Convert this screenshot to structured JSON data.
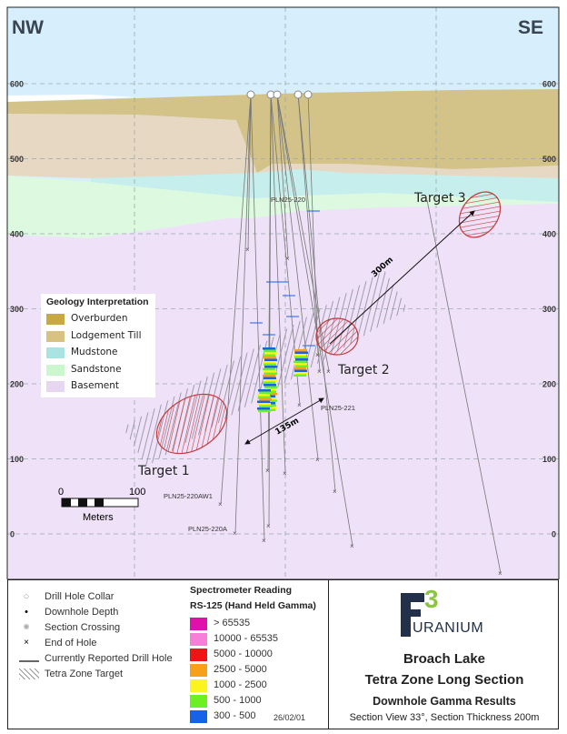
{
  "map": {
    "left_direction": "NW",
    "right_direction": "SE",
    "elevation_ticks": [
      "600",
      "500",
      "400",
      "300",
      "200",
      "100",
      "0"
    ],
    "hole_labels": [
      "PLN25-220",
      "PLN25-221",
      "PLN25-220AW1",
      "PLN25-220A"
    ],
    "targets": [
      "Target 1",
      "Target 2",
      "Target 3"
    ],
    "distances": [
      "135m",
      "300m"
    ],
    "scale_bar": {
      "start": "0",
      "end": "100",
      "unit": "Meters"
    },
    "colors": {
      "sky": "#d7effc",
      "overburden": "#d3c389",
      "lodgement_till": "#e7d8c3",
      "mudstone": "#c5eeec",
      "sandstone": "#ddf9e0",
      "basement": "#efe1f8",
      "target": "#d94a4a"
    }
  },
  "geology_legend": {
    "title": "Geology Interpretation",
    "items": [
      {
        "label": "Overburden",
        "color": "#c8a844"
      },
      {
        "label": "Lodgement Till",
        "color": "#d8c282"
      },
      {
        "label": "Mudstone",
        "color": "#a9e3e2"
      },
      {
        "label": "Sandstone",
        "color": "#cbf7cf"
      },
      {
        "label": "Basement",
        "color": "#e6d6f2"
      }
    ]
  },
  "symbols_legend": [
    {
      "icon": "drill-hole-collar-icon",
      "label": "Drill Hole Collar"
    },
    {
      "icon": "downhole-depth-icon",
      "label": "Downhole Depth"
    },
    {
      "icon": "section-crossing-icon",
      "label": "Section Crossing"
    },
    {
      "icon": "end-of-hole-icon",
      "label": "End of Hole"
    },
    {
      "icon": "drill-hole-line-icon",
      "label": "Currently Reported Drill Hole"
    },
    {
      "icon": "hatch-icon",
      "label": "Tetra Zone Target"
    }
  ],
  "spectrometer_legend": {
    "title": "Spectrometer Reading",
    "subtitle": "RS-125 (Hand Held Gamma)",
    "items": [
      {
        "label": "> 65535",
        "color": "#e011a8"
      },
      {
        "label": "10000 - 65535",
        "color": "#f77fd9"
      },
      {
        "label": "5000 - 10000",
        "color": "#f01515"
      },
      {
        "label": "2500 - 5000",
        "color": "#f7a019"
      },
      {
        "label": "1000 - 2500",
        "color": "#fbf51d"
      },
      {
        "label": "500 - 1000",
        "color": "#6cf024"
      },
      {
        "label": "300 - 500",
        "color": "#1763e8"
      }
    ],
    "date": "26/02/01"
  },
  "title_block": {
    "logo_mark": "F3",
    "logo_text": "URANIUM",
    "line1": "Broach Lake",
    "line2": "Tetra Zone Long Section",
    "line3": "Downhole Gamma Results",
    "line4": "Section View 33°, Section Thickness 200m"
  }
}
